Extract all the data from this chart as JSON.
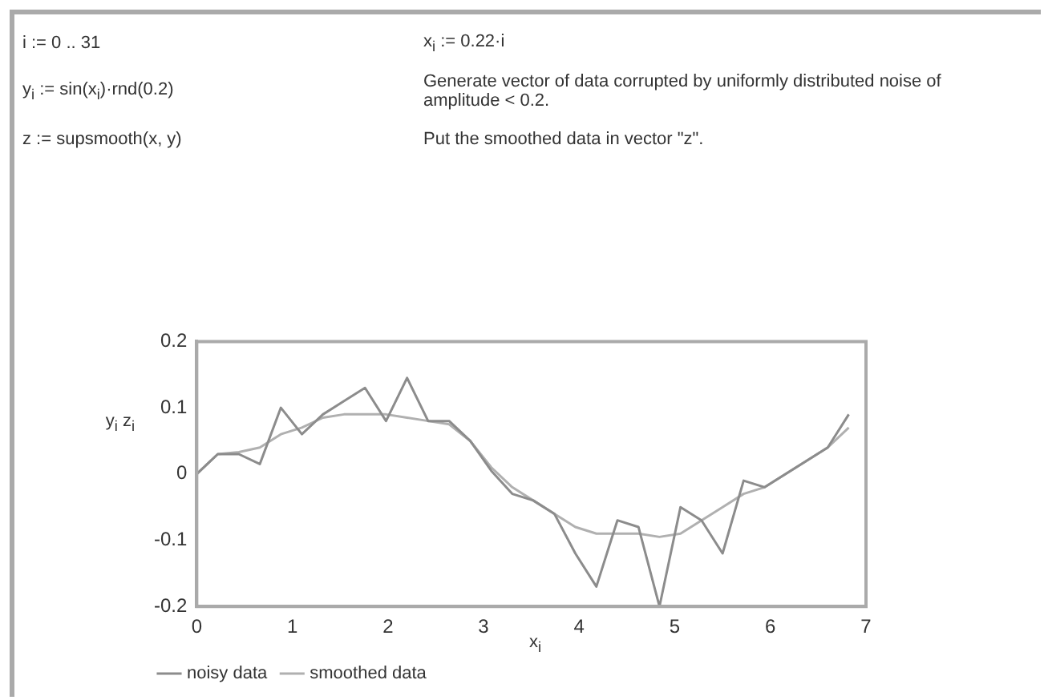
{
  "chart_data": {
    "type": "line",
    "annotations": [
      "i := 0 .. 31",
      "x$_{i}$ := 0.22·i",
      "y$_{i}$ := sin(x$_{i}$)·rnd(0.2)",
      "Generate vector of data corrupted by uniformly distributed noise of amplitude < 0.2.",
      "z := supsmooth(x, y)",
      "Put the smoothed data in vector \"z\"."
    ],
    "xlabel": "x$_{i}$",
    "ylabel": "y$_{i}$ z$_{i}$",
    "xlim": [
      0,
      7
    ],
    "xticks": [
      0,
      1,
      2,
      3,
      4,
      5,
      6,
      7
    ],
    "ylim": [
      -0.2,
      0.2
    ],
    "yticks": [
      -0.2,
      -0.1,
      0,
      0.1,
      0.2
    ],
    "grid": false,
    "legend": "bottom left",
    "series": [
      {
        "name": "noisy data",
        "color": "#8c8c8c",
        "x": [
          0,
          0.22,
          0.44,
          0.66,
          0.88,
          1.1,
          1.32,
          1.54,
          1.76,
          1.98,
          2.2,
          2.42,
          2.64,
          2.86,
          3.08,
          3.3,
          3.52,
          3.74,
          3.96,
          4.18,
          4.4,
          4.62,
          4.84,
          5.06,
          5.28,
          5.5,
          5.72,
          5.94,
          6.16,
          6.38,
          6.6,
          6.82
        ],
        "values": [
          0,
          0.03,
          0.03,
          0.015,
          0.1,
          0.06,
          0.09,
          0.11,
          0.13,
          0.08,
          0.145,
          0.08,
          0.08,
          0.05,
          0.005,
          -0.03,
          -0.04,
          -0.06,
          -0.12,
          -0.17,
          -0.07,
          -0.08,
          -0.2,
          -0.05,
          -0.07,
          -0.12,
          -0.01,
          -0.02,
          0,
          0.02,
          0.04,
          0.09
        ]
      },
      {
        "name": "smoothed data",
        "color": "#b0b0b0",
        "x": [
          0,
          0.22,
          0.44,
          0.66,
          0.88,
          1.1,
          1.32,
          1.54,
          1.76,
          1.98,
          2.2,
          2.42,
          2.64,
          2.86,
          3.08,
          3.3,
          3.52,
          3.74,
          3.96,
          4.18,
          4.4,
          4.62,
          4.84,
          5.06,
          5.28,
          5.5,
          5.72,
          5.94,
          6.16,
          6.38,
          6.6,
          6.82
        ],
        "values": [
          0,
          0.03,
          0.033,
          0.04,
          0.06,
          0.07,
          0.085,
          0.09,
          0.09,
          0.09,
          0.085,
          0.08,
          0.075,
          0.05,
          0.01,
          -0.02,
          -0.04,
          -0.06,
          -0.08,
          -0.09,
          -0.09,
          -0.09,
          -0.095,
          -0.09,
          -0.07,
          -0.05,
          -0.03,
          -0.02,
          0,
          0.02,
          0.04,
          0.07
        ]
      }
    ]
  }
}
